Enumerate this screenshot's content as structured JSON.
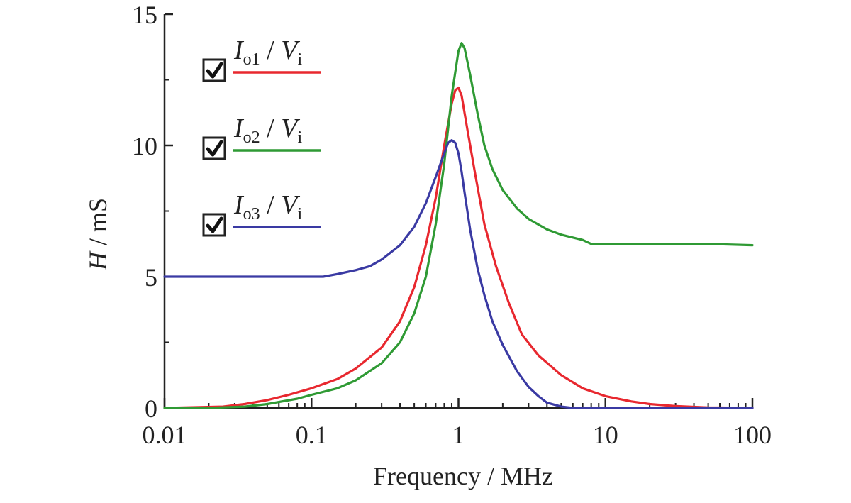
{
  "chart_data": {
    "type": "line",
    "title": "",
    "xlabel": "Frequency / MHz",
    "ylabel": {
      "var": "H",
      "unit": " / mS"
    },
    "xscale": "log",
    "xlim": [
      0.01,
      100
    ],
    "ylim": [
      0,
      15
    ],
    "xticks": [
      {
        "value": 0.01,
        "label": "0.01"
      },
      {
        "value": 0.1,
        "label": "0.1"
      },
      {
        "value": 1,
        "label": "1"
      },
      {
        "value": 10,
        "label": "10"
      },
      {
        "value": 100,
        "label": "100"
      }
    ],
    "yticks": [
      {
        "value": 0,
        "label": "0"
      },
      {
        "value": 5,
        "label": "5"
      },
      {
        "value": 10,
        "label": "10"
      },
      {
        "value": 15,
        "label": "15"
      }
    ],
    "grid": false,
    "legend_position": "top-left",
    "series": [
      {
        "name": "Io1 / Vi",
        "label_parts": {
          "num": "I",
          "num_sub": "o1",
          "slash": " / ",
          "den": "V",
          "den_sub": "i"
        },
        "color": "#e8282f",
        "x": [
          0.01,
          0.025,
          0.035,
          0.05,
          0.07,
          0.1,
          0.15,
          0.2,
          0.3,
          0.4,
          0.5,
          0.6,
          0.7,
          0.8,
          0.9,
          0.95,
          1.0,
          1.05,
          1.15,
          1.3,
          1.5,
          1.8,
          2.2,
          2.7,
          3.5,
          5,
          7,
          10,
          15,
          20,
          30,
          50,
          100
        ],
        "y": [
          0,
          0.05,
          0.15,
          0.3,
          0.5,
          0.75,
          1.1,
          1.5,
          2.3,
          3.3,
          4.6,
          6.2,
          8.0,
          10.0,
          11.6,
          12.1,
          12.2,
          11.9,
          10.6,
          8.9,
          7.0,
          5.4,
          4.0,
          2.8,
          2.0,
          1.25,
          0.75,
          0.45,
          0.25,
          0.15,
          0.07,
          0.02,
          0
        ]
      },
      {
        "name": "Io2 / Vi",
        "label_parts": {
          "num": "I",
          "num_sub": "o2",
          "slash": " / ",
          "den": "V",
          "den_sub": "i"
        },
        "color": "#2f9a34",
        "x": [
          0.01,
          0.02,
          0.035,
          0.05,
          0.08,
          0.1,
          0.15,
          0.2,
          0.3,
          0.4,
          0.5,
          0.6,
          0.7,
          0.8,
          0.9,
          1.0,
          1.05,
          1.1,
          1.2,
          1.35,
          1.5,
          1.7,
          2.0,
          2.5,
          3,
          4,
          5,
          7,
          8,
          10,
          20,
          50,
          100
        ],
        "y": [
          0,
          0,
          0.05,
          0.15,
          0.35,
          0.5,
          0.75,
          1.05,
          1.7,
          2.5,
          3.6,
          5.0,
          7.0,
          9.3,
          11.9,
          13.6,
          13.9,
          13.7,
          12.7,
          11.2,
          10.0,
          9.1,
          8.3,
          7.6,
          7.2,
          6.8,
          6.6,
          6.4,
          6.25,
          6.25,
          6.25,
          6.25,
          6.2
        ]
      },
      {
        "name": "Io3 / Vi",
        "label_parts": {
          "num": "I",
          "num_sub": "o3",
          "slash": " / ",
          "den": "V",
          "den_sub": "i"
        },
        "color": "#3a3aa3",
        "x": [
          0.01,
          0.05,
          0.12,
          0.15,
          0.2,
          0.25,
          0.3,
          0.4,
          0.5,
          0.6,
          0.7,
          0.8,
          0.85,
          0.9,
          0.95,
          1.0,
          1.05,
          1.1,
          1.2,
          1.35,
          1.5,
          1.7,
          2.0,
          2.5,
          3,
          3.5,
          4,
          5,
          6,
          10,
          100
        ],
        "y": [
          5.0,
          5.0,
          5.0,
          5.1,
          5.25,
          5.4,
          5.65,
          6.2,
          6.9,
          7.8,
          8.8,
          9.7,
          10.1,
          10.2,
          10.1,
          9.7,
          9.0,
          8.2,
          6.8,
          5.3,
          4.3,
          3.3,
          2.4,
          1.4,
          0.8,
          0.45,
          0.2,
          0.05,
          0,
          0,
          0
        ]
      }
    ]
  },
  "legend": {
    "checkbox_icon": "checkmark-icon"
  }
}
